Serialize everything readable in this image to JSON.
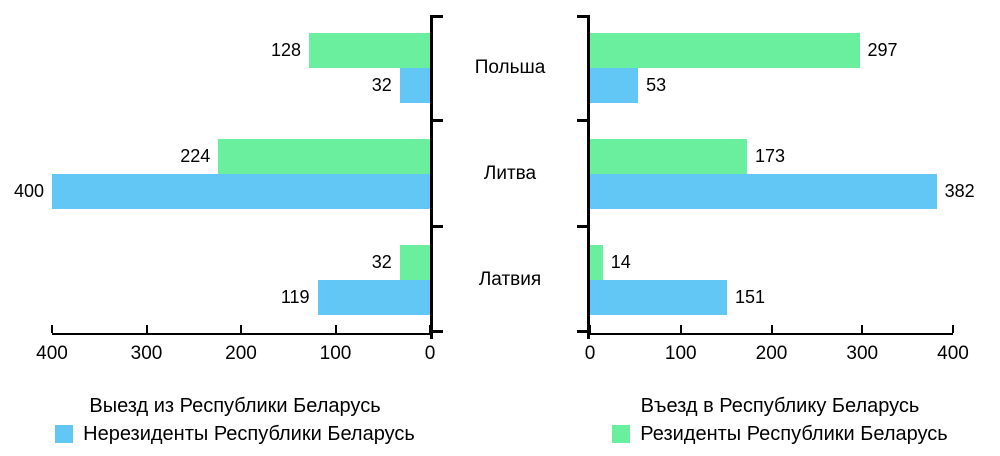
{
  "colors": {
    "residents": "#69EF9D",
    "nonresidents": "#63C7F5",
    "axis": "#000000",
    "text": "#000000",
    "background": "#FFFFFF"
  },
  "categories": [
    "Польша",
    "Литва",
    "Латвия"
  ],
  "chart_data": [
    {
      "type": "bar",
      "orientation": "horizontal",
      "title": "Выезд из Республики Беларусь",
      "categories": [
        "Польша",
        "Литва",
        "Латвия"
      ],
      "series": [
        {
          "name": "Резиденты Республики Беларусь",
          "color": "#69EF9D",
          "values": [
            128,
            224,
            32
          ]
        },
        {
          "name": "Нерезиденты Республики Беларусь",
          "color": "#63C7F5",
          "values": [
            32,
            400,
            119
          ]
        }
      ],
      "max": 400,
      "xlim": [
        400,
        0
      ],
      "axis_ticks": [
        "400",
        "300",
        "200",
        "100",
        "0"
      ],
      "grid": false,
      "value_labels": "outside-end",
      "legend_position": "bottom"
    },
    {
      "type": "bar",
      "orientation": "horizontal",
      "title": "Въезд в Республику Беларусь",
      "categories": [
        "Польша",
        "Литва",
        "Латвия"
      ],
      "series": [
        {
          "name": "Резиденты Республики Беларусь",
          "color": "#69EF9D",
          "values": [
            297,
            173,
            14
          ]
        },
        {
          "name": "Нерезиденты Республики Беларусь",
          "color": "#63C7F5",
          "values": [
            53,
            382,
            151
          ]
        }
      ],
      "max": 400,
      "xlim": [
        0,
        400
      ],
      "axis_ticks": [
        "0",
        "100",
        "200",
        "300",
        "400"
      ],
      "grid": false,
      "value_labels": "outside-end",
      "legend_position": "bottom"
    }
  ]
}
